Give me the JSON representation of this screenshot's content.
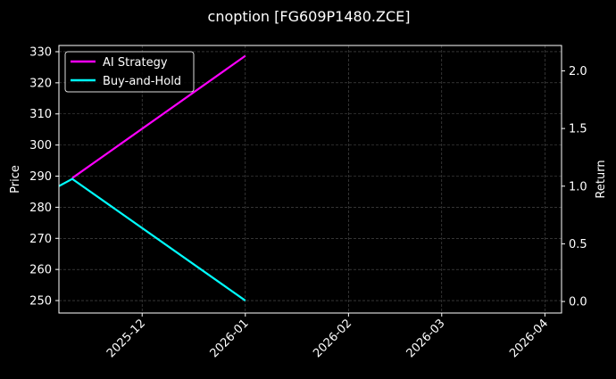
{
  "chart_data": {
    "type": "line",
    "title": "cnoption [FG609P1480.ZCE]",
    "ylabel_left": "Price",
    "ylabel_right": "Return",
    "xlim": [
      "2025-11-06",
      "2026-04-06"
    ],
    "ylim_left": [
      246,
      332
    ],
    "ylim_right": [
      -0.1,
      2.22
    ],
    "x_ticks": [
      "2025-12",
      "2026-01",
      "2026-02",
      "2026-03",
      "2026-04"
    ],
    "x_tick_dates": [
      "2025-12-01",
      "2026-01-01",
      "2026-02-01",
      "2026-03-01",
      "2026-04-01"
    ],
    "y_ticks_left": [
      250,
      260,
      270,
      280,
      290,
      300,
      310,
      320,
      330
    ],
    "y_ticks_right": [
      "0.0",
      "0.5",
      "1.0",
      "1.5",
      "2.0"
    ],
    "grid": true,
    "legend_position": "top-left",
    "series": [
      {
        "name": "AI Strategy",
        "axis": "right",
        "color": "#ff00ff",
        "x": [
          "2025-11-10",
          "2026-01-01"
        ],
        "y": [
          1.07,
          2.13
        ]
      },
      {
        "name": "Buy-and-Hold",
        "axis": "left",
        "color": "#00ffff",
        "x": [
          "2025-11-06",
          "2025-11-10",
          "2026-01-01"
        ],
        "y": [
          286.8,
          289.1,
          250
        ]
      }
    ]
  }
}
